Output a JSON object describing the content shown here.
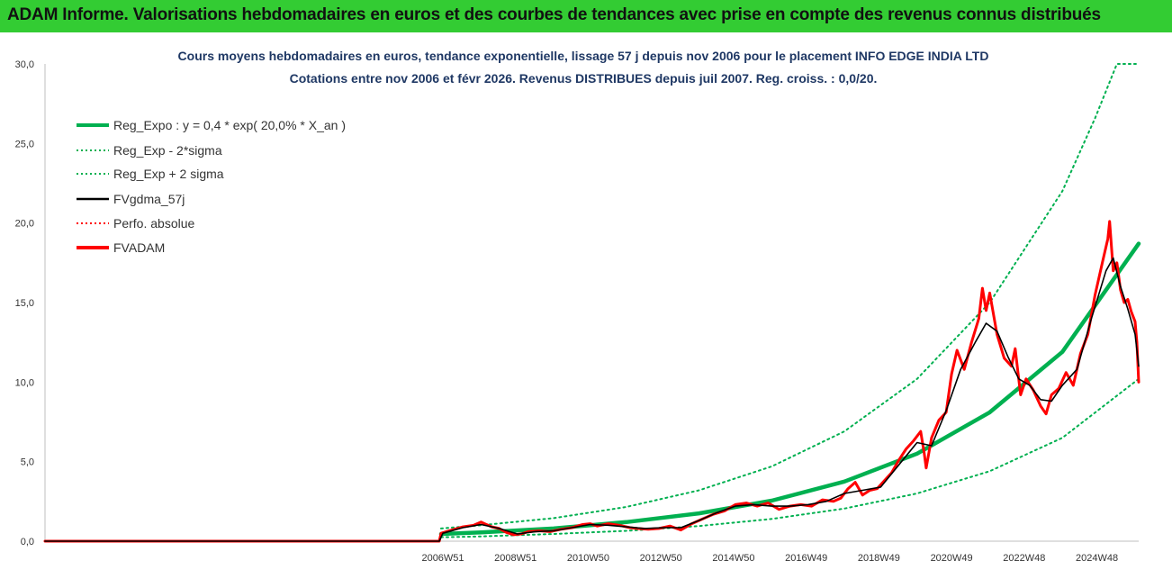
{
  "banner": {
    "title": "ADAM Informe. Valorisations hebdomadaires en euros et des courbes de tendances avec prise en compte des revenus connus distribués"
  },
  "chart_data": {
    "type": "line",
    "title": "Cours moyens hebdomadaires en euros, tendance exponentielle, lissage 57 j depuis nov 2006 pour le placement INFO EDGE INDIA LTD",
    "subtitle": "Cotations entre nov 2006 et févr 2026. Revenus DISTRIBUES depuis juil 2007. Reg. croiss. : 0,0/20.",
    "xlabel": "",
    "ylabel": "",
    "ylim": [
      0,
      30
    ],
    "yticks": [
      "0,0",
      "5,0",
      "10,0",
      "15,0",
      "20,0",
      "25,0",
      "30,0"
    ],
    "xticks": [
      "2006W51",
      "2008W51",
      "2010W50",
      "2012W50",
      "2014W50",
      "2016W49",
      "2018W49",
      "2020W49",
      "2022W48",
      "2024W48"
    ],
    "xrange_years": [
      1996.0,
      2026.1
    ],
    "grid": false,
    "legend_position": "top-left",
    "legend": [
      {
        "label": "Reg_Expo : y = 0,4 * exp( 20,0% *  X_an )",
        "color": "#00b050",
        "style": "thick"
      },
      {
        "label": "Reg_Exp - 2*sigma",
        "color": "#00b050",
        "style": "dotted"
      },
      {
        "label": "Reg_Exp + 2 sigma",
        "color": "#00b050",
        "style": "dotted"
      },
      {
        "label": "FVgdma_57j",
        "color": "#000000",
        "style": "solid"
      },
      {
        "label": "Perfo. absolue",
        "color": "#ff0000",
        "style": "dotted"
      },
      {
        "label": "FVADAM",
        "color": "#ff0000",
        "style": "thick"
      }
    ],
    "series": [
      {
        "name": "FVADAM",
        "points": [
          [
            1996.0,
            0
          ],
          [
            2006.85,
            0
          ],
          [
            2006.9,
            0.5
          ],
          [
            2007.2,
            0.7
          ],
          [
            2007.5,
            0.9
          ],
          [
            2007.8,
            1.0
          ],
          [
            2008.0,
            1.2
          ],
          [
            2008.1,
            1.1
          ],
          [
            2008.3,
            0.9
          ],
          [
            2008.5,
            0.8
          ],
          [
            2008.7,
            0.55
          ],
          [
            2008.9,
            0.4
          ],
          [
            2009.1,
            0.45
          ],
          [
            2009.3,
            0.6
          ],
          [
            2009.6,
            0.65
          ],
          [
            2009.9,
            0.6
          ],
          [
            2010.2,
            0.75
          ],
          [
            2010.5,
            0.85
          ],
          [
            2010.8,
            1.05
          ],
          [
            2011.0,
            1.1
          ],
          [
            2011.2,
            0.95
          ],
          [
            2011.5,
            1.1
          ],
          [
            2011.8,
            1.0
          ],
          [
            2012.1,
            0.85
          ],
          [
            2012.3,
            0.8
          ],
          [
            2012.6,
            0.75
          ],
          [
            2012.9,
            0.8
          ],
          [
            2013.2,
            0.95
          ],
          [
            2013.5,
            0.7
          ],
          [
            2013.8,
            1.1
          ],
          [
            2014.1,
            1.4
          ],
          [
            2014.4,
            1.7
          ],
          [
            2014.7,
            1.9
          ],
          [
            2015.0,
            2.3
          ],
          [
            2015.3,
            2.4
          ],
          [
            2015.6,
            2.2
          ],
          [
            2015.9,
            2.4
          ],
          [
            2016.2,
            2.0
          ],
          [
            2016.5,
            2.2
          ],
          [
            2016.8,
            2.3
          ],
          [
            2017.1,
            2.2
          ],
          [
            2017.4,
            2.6
          ],
          [
            2017.7,
            2.5
          ],
          [
            2017.9,
            2.7
          ],
          [
            2018.1,
            3.3
          ],
          [
            2018.3,
            3.7
          ],
          [
            2018.5,
            2.9
          ],
          [
            2018.7,
            3.2
          ],
          [
            2018.9,
            3.3
          ],
          [
            2019.1,
            3.8
          ],
          [
            2019.3,
            4.3
          ],
          [
            2019.5,
            5.1
          ],
          [
            2019.7,
            5.8
          ],
          [
            2019.9,
            6.3
          ],
          [
            2020.1,
            6.9
          ],
          [
            2020.2,
            5.5
          ],
          [
            2020.25,
            4.6
          ],
          [
            2020.4,
            6.5
          ],
          [
            2020.6,
            7.6
          ],
          [
            2020.8,
            8.1
          ],
          [
            2020.95,
            10.5
          ],
          [
            2021.1,
            12.0
          ],
          [
            2021.3,
            10.8
          ],
          [
            2021.5,
            12.5
          ],
          [
            2021.7,
            14.0
          ],
          [
            2021.8,
            15.9
          ],
          [
            2021.9,
            14.5
          ],
          [
            2022.0,
            15.6
          ],
          [
            2022.2,
            13.0
          ],
          [
            2022.4,
            11.5
          ],
          [
            2022.6,
            11.0
          ],
          [
            2022.7,
            12.1
          ],
          [
            2022.85,
            9.2
          ],
          [
            2023.0,
            10.2
          ],
          [
            2023.2,
            9.5
          ],
          [
            2023.4,
            8.5
          ],
          [
            2023.55,
            8.0
          ],
          [
            2023.7,
            9.2
          ],
          [
            2023.9,
            9.6
          ],
          [
            2024.1,
            10.6
          ],
          [
            2024.3,
            9.8
          ],
          [
            2024.5,
            11.8
          ],
          [
            2024.7,
            13.0
          ],
          [
            2024.9,
            15.5
          ],
          [
            2025.1,
            17.5
          ],
          [
            2025.25,
            19.0
          ],
          [
            2025.3,
            20.1
          ],
          [
            2025.4,
            17.0
          ],
          [
            2025.5,
            17.5
          ],
          [
            2025.6,
            15.8
          ],
          [
            2025.7,
            15.0
          ],
          [
            2025.8,
            15.2
          ],
          [
            2025.9,
            14.4
          ],
          [
            2026.0,
            13.8
          ],
          [
            2026.05,
            12.5
          ],
          [
            2026.1,
            10.0
          ]
        ]
      },
      {
        "name": "FVgdma_57j",
        "points": [
          [
            1996.0,
            0
          ],
          [
            2006.85,
            0
          ],
          [
            2006.95,
            0.5
          ],
          [
            2007.5,
            0.85
          ],
          [
            2008.0,
            1.05
          ],
          [
            2008.5,
            0.8
          ],
          [
            2009.0,
            0.45
          ],
          [
            2009.5,
            0.6
          ],
          [
            2010.0,
            0.65
          ],
          [
            2010.5,
            0.85
          ],
          [
            2011.0,
            1.05
          ],
          [
            2011.5,
            1.0
          ],
          [
            2012.0,
            0.9
          ],
          [
            2012.5,
            0.8
          ],
          [
            2013.0,
            0.85
          ],
          [
            2013.5,
            0.85
          ],
          [
            2014.0,
            1.3
          ],
          [
            2014.5,
            1.8
          ],
          [
            2015.0,
            2.2
          ],
          [
            2015.5,
            2.3
          ],
          [
            2016.0,
            2.2
          ],
          [
            2016.5,
            2.2
          ],
          [
            2017.0,
            2.3
          ],
          [
            2017.5,
            2.5
          ],
          [
            2018.0,
            3.0
          ],
          [
            2018.5,
            3.2
          ],
          [
            2019.0,
            3.4
          ],
          [
            2019.5,
            4.8
          ],
          [
            2020.0,
            6.2
          ],
          [
            2020.4,
            6.0
          ],
          [
            2020.8,
            8.2
          ],
          [
            2021.2,
            10.8
          ],
          [
            2021.6,
            12.5
          ],
          [
            2021.9,
            13.7
          ],
          [
            2022.2,
            13.2
          ],
          [
            2022.5,
            11.6
          ],
          [
            2022.8,
            10.2
          ],
          [
            2023.1,
            9.8
          ],
          [
            2023.4,
            8.9
          ],
          [
            2023.7,
            8.8
          ],
          [
            2024.0,
            9.8
          ],
          [
            2024.4,
            10.8
          ],
          [
            2024.8,
            14.0
          ],
          [
            2025.2,
            17.0
          ],
          [
            2025.4,
            17.8
          ],
          [
            2025.6,
            16.0
          ],
          [
            2025.8,
            14.6
          ],
          [
            2026.0,
            13.0
          ],
          [
            2026.1,
            11.0
          ]
        ]
      }
    ],
    "regression": {
      "label": "Reg_Expo : y = 0,4 * exp( 20,0% *  X_an )",
      "points": [
        [
          2006.9,
          0.45
        ],
        [
          2008.0,
          0.55
        ],
        [
          2010.0,
          0.8
        ],
        [
          2012.0,
          1.2
        ],
        [
          2014.0,
          1.75
        ],
        [
          2016.0,
          2.55
        ],
        [
          2018.0,
          3.75
        ],
        [
          2020.0,
          5.5
        ],
        [
          2022.0,
          8.1
        ],
        [
          2024.0,
          11.9
        ],
        [
          2026.1,
          18.7
        ]
      ]
    },
    "band_lower": {
      "label": "Reg_Exp - 2*sigma",
      "points": [
        [
          2006.9,
          0.25
        ],
        [
          2008.0,
          0.3
        ],
        [
          2010.0,
          0.45
        ],
        [
          2012.0,
          0.65
        ],
        [
          2014.0,
          0.95
        ],
        [
          2016.0,
          1.4
        ],
        [
          2018.0,
          2.05
        ],
        [
          2020.0,
          3.0
        ],
        [
          2022.0,
          4.4
        ],
        [
          2024.0,
          6.5
        ],
        [
          2026.1,
          10.2
        ]
      ]
    },
    "band_upper": {
      "label": "Reg_Exp + 2 sigma",
      "points": [
        [
          2006.9,
          0.8
        ],
        [
          2008.0,
          1.0
        ],
        [
          2010.0,
          1.45
        ],
        [
          2012.0,
          2.15
        ],
        [
          2014.0,
          3.2
        ],
        [
          2016.0,
          4.7
        ],
        [
          2018.0,
          6.9
        ],
        [
          2020.0,
          10.2
        ],
        [
          2022.0,
          15.0
        ],
        [
          2024.0,
          22.0
        ],
        [
          2024.9,
          26.6
        ],
        [
          2025.5,
          30.0
        ],
        [
          2026.1,
          30.0
        ]
      ]
    }
  }
}
